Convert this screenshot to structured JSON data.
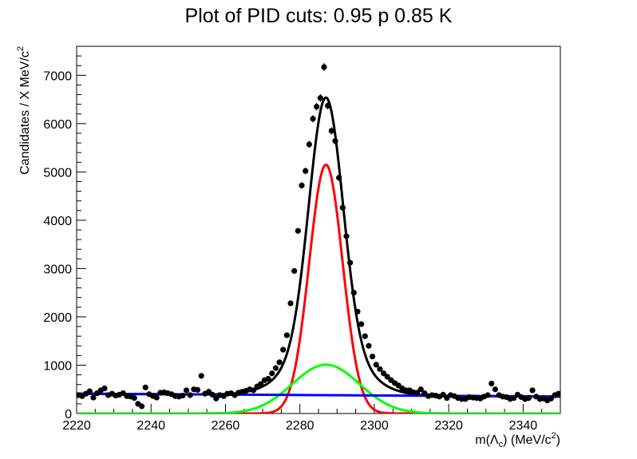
{
  "chart_data": {
    "type": "scatter",
    "title": "Plot of PID cuts: 0.95 p 0.85 K",
    "xlabel": {
      "text": "m(Λ",
      "sub": "c",
      "rest": ") (MeV/c",
      "sup": "2",
      "end": ")"
    },
    "ylabel": {
      "text": "Candidates / X MeV/c",
      "sup": "2"
    },
    "xlim": [
      2220,
      2350
    ],
    "ylim": [
      0,
      7600
    ],
    "x_ticks": [
      "2220",
      "2240",
      "2260",
      "2280",
      "2300",
      "2320",
      "2340"
    ],
    "y_ticks": [
      "0",
      "1000",
      "2000",
      "3000",
      "4000",
      "5000",
      "6000",
      "7000"
    ],
    "grid": false,
    "legend": "none",
    "series": [
      {
        "kind": "points",
        "color": "#000000",
        "x": [
          2220.5,
          2221.5,
          2222.5,
          2223.5,
          2224.5,
          2225.5,
          2226.5,
          2227.5,
          2228.5,
          2229.5,
          2230.5,
          2231.5,
          2232.5,
          2233.5,
          2234.5,
          2235.5,
          2236.5,
          2237.5,
          2238.5,
          2239.5,
          2240.5,
          2241.5,
          2242.5,
          2243.5,
          2244.5,
          2245.5,
          2246.5,
          2247.5,
          2248.5,
          2249.5,
          2250.5,
          2251.5,
          2252.5,
          2253.5,
          2254.5,
          2255.5,
          2256.5,
          2257.5,
          2258.5,
          2259.5,
          2260.5,
          2261.5,
          2262.5,
          2263.5,
          2264.5,
          2265.5,
          2266.5,
          2267.5,
          2268.5,
          2269.5,
          2270.5,
          2271.5,
          2272.5,
          2273.5,
          2274.5,
          2275.5,
          2276.5,
          2277.5,
          2278.5,
          2279.5,
          2280.5,
          2281.5,
          2282.5,
          2283.5,
          2284.5,
          2285.5,
          2286.5,
          2287.5,
          2288.5,
          2289.5,
          2290.5,
          2291.5,
          2292.5,
          2293.5,
          2294.5,
          2295.5,
          2296.5,
          2297.5,
          2298.5,
          2299.5,
          2300.5,
          2301.5,
          2302.5,
          2303.5,
          2304.5,
          2305.5,
          2306.5,
          2307.5,
          2308.5,
          2309.5,
          2310.5,
          2311.5,
          2312.5,
          2313.5,
          2314.5,
          2315.5,
          2316.5,
          2317.5,
          2318.5,
          2319.5,
          2320.5,
          2321.5,
          2322.5,
          2323.5,
          2324.5,
          2325.5,
          2326.5,
          2327.5,
          2328.5,
          2329.5,
          2330.5,
          2331.5,
          2332.5,
          2333.5,
          2334.5,
          2335.5,
          2336.5,
          2337.5,
          2338.5,
          2339.5,
          2340.5,
          2341.5,
          2342.5,
          2343.5,
          2344.5,
          2345.5,
          2346.5,
          2347.5,
          2348.5,
          2349.5
        ],
        "y": [
          380,
          360,
          410,
          460,
          330,
          420,
          480,
          520,
          380,
          410,
          370,
          390,
          420,
          360,
          350,
          320,
          200,
          150,
          540,
          400,
          360,
          330,
          430,
          440,
          420,
          400,
          360,
          350,
          370,
          480,
          380,
          500,
          490,
          780,
          410,
          450,
          390,
          310,
          380,
          360,
          410,
          420,
          380,
          430,
          450,
          470,
          500,
          480,
          560,
          610,
          690,
          720,
          830,
          940,
          1060,
          1320,
          1620,
          2280,
          2950,
          3780,
          4720,
          5020,
          5570,
          6100,
          6350,
          6530,
          7170,
          6370,
          5850,
          5640,
          4880,
          4260,
          3670,
          3120,
          2500,
          2110,
          1850,
          1600,
          1400,
          1180,
          1010,
          920,
          830,
          760,
          690,
          630,
          580,
          520,
          480,
          480,
          440,
          430,
          500,
          420,
          360,
          380,
          370,
          350,
          390,
          320,
          380,
          360,
          320,
          300,
          300,
          340,
          330,
          320,
          310,
          350,
          380,
          620,
          500,
          380,
          350,
          340,
          300,
          320,
          390,
          340,
          300,
          320,
          480,
          350,
          300,
          310,
          270,
          310,
          380,
          410
        ]
      },
      {
        "kind": "curve",
        "name": "total",
        "color": "#000000",
        "mean": 2287,
        "amp": 6150,
        "sigma": 5.5,
        "tail_amp": 0,
        "background": 385
      },
      {
        "kind": "curve",
        "name": "signal-narrow",
        "color": "#ff0000",
        "mean": 2287,
        "amp": 5150,
        "sigma": 4.5
      },
      {
        "kind": "curve",
        "name": "signal-wide",
        "color": "#00ff00",
        "mean": 2287,
        "amp": 1010,
        "sigma": 9
      },
      {
        "kind": "line",
        "name": "background",
        "color": "#0000ff",
        "x": [
          2220,
          2350
        ],
        "y": [
          410,
          350
        ]
      }
    ]
  }
}
